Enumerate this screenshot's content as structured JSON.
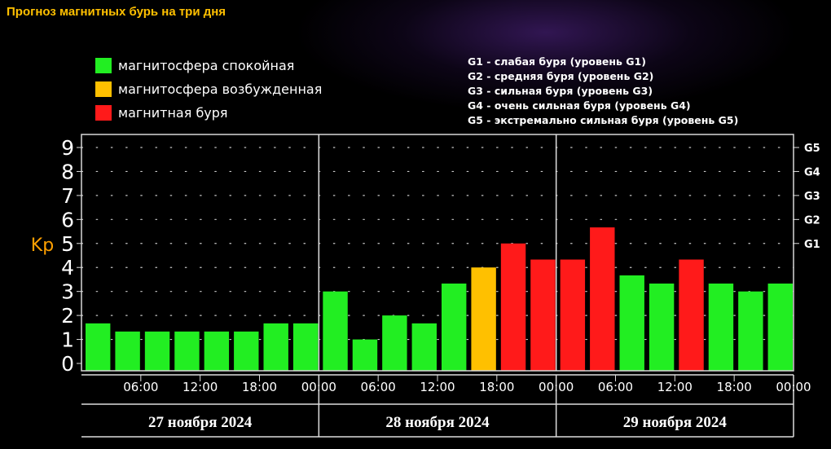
{
  "title": "Прогноз магнитных бурь на три дня",
  "legend": {
    "items": [
      {
        "label": "магнитосфера спокойная",
        "color": "#22ee22"
      },
      {
        "label": "магнитосфера возбужденная",
        "color": "#ffc000"
      },
      {
        "label": "магнитная буря",
        "color": "#ff1a1a"
      }
    ],
    "storm_levels": [
      "G1 - слабая буря (уровень G1)",
      "G2 - средняя буря (уровень G2)",
      "G3 - сильная буря (уровень G3)",
      "G4 - очень сильная буря (уровень G4)",
      "G5 - экстремально сильная буря (уровень G5)"
    ]
  },
  "chart_data": {
    "type": "bar",
    "ylabel": "Kp",
    "ylim": [
      0,
      9
    ],
    "y_ticks": [
      "0",
      "1",
      "2",
      "3",
      "4",
      "5",
      "6",
      "7",
      "8",
      "9"
    ],
    "right_ticks": [
      {
        "label": "G1",
        "kp": 5
      },
      {
        "label": "G2",
        "kp": 6
      },
      {
        "label": "G3",
        "kp": 7
      },
      {
        "label": "G4",
        "kp": 8
      },
      {
        "label": "G5",
        "kp": 9
      }
    ],
    "x_tick_labels": [
      "06:00",
      "12:00",
      "18:00",
      "00:00",
      "06:00",
      "12:00",
      "18:00",
      "00:00",
      "06:00",
      "12:00",
      "18:00",
      "00:00"
    ],
    "days": [
      "27 ноября 2024",
      "28 ноября 2024",
      "29 ноября 2024"
    ],
    "values": [
      1.67,
      1.33,
      1.33,
      1.33,
      1.33,
      1.33,
      1.67,
      1.67,
      3.0,
      1.0,
      2.0,
      1.67,
      3.33,
      4.0,
      5.0,
      4.33,
      4.33,
      5.67,
      3.67,
      3.33,
      4.33,
      3.33,
      3.0,
      3.33
    ],
    "levels": [
      "quiet",
      "quiet",
      "quiet",
      "quiet",
      "quiet",
      "quiet",
      "quiet",
      "quiet",
      "quiet",
      "quiet",
      "quiet",
      "quiet",
      "quiet",
      "active",
      "storm",
      "storm",
      "storm",
      "storm",
      "quiet",
      "quiet",
      "storm",
      "quiet",
      "quiet",
      "quiet"
    ],
    "colors": {
      "quiet": "#22ee22",
      "active": "#ffc000",
      "storm": "#ff1a1a"
    },
    "grid": true
  }
}
